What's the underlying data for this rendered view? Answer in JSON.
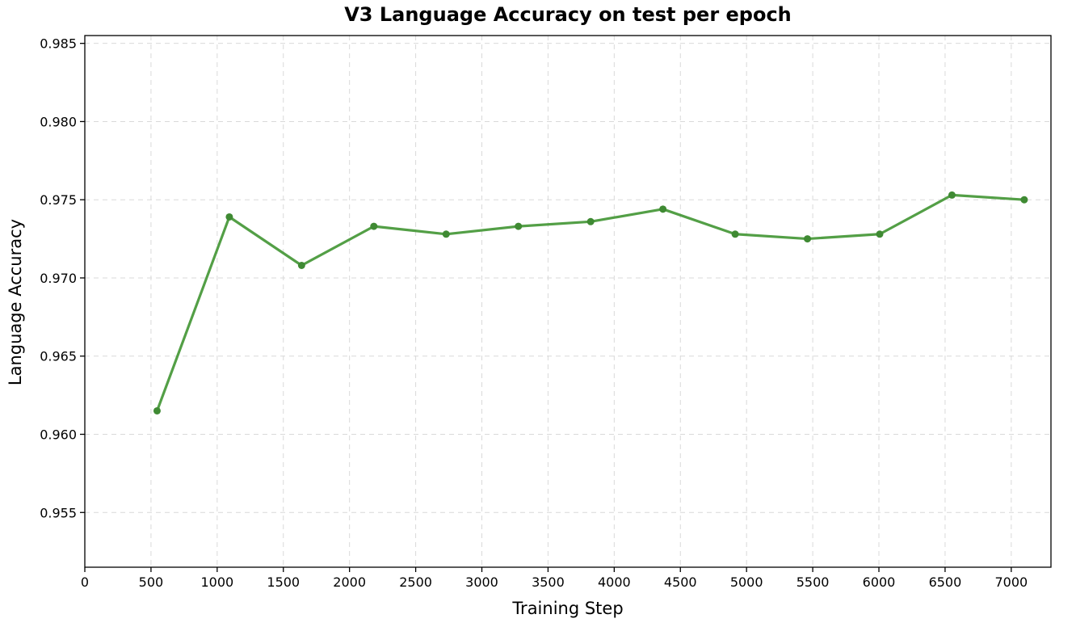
{
  "chart_data": {
    "type": "line",
    "title": "V3 Language Accuracy on test per epoch",
    "xlabel": "Training Step",
    "ylabel": "Language Accuracy",
    "xlim": [
      0,
      7300
    ],
    "ylim": [
      0.9515,
      0.9855
    ],
    "xticks": [
      0,
      500,
      1000,
      1500,
      2000,
      2500,
      3000,
      3500,
      4000,
      4500,
      5000,
      5500,
      6000,
      6500,
      7000
    ],
    "yticks": [
      0.955,
      0.96,
      0.965,
      0.97,
      0.975,
      0.98,
      0.985
    ],
    "ytick_labels": [
      "0.955",
      "0.960",
      "0.965",
      "0.970",
      "0.975",
      "0.980",
      "0.985"
    ],
    "grid": true,
    "legend": "none",
    "series": [
      {
        "color": "#4a9a3c",
        "x": [
          546,
          1092,
          1638,
          2184,
          2730,
          3276,
          3822,
          4368,
          4914,
          5460,
          6006,
          6552,
          7098
        ],
        "y": [
          0.9615,
          0.9739,
          0.9708,
          0.9733,
          0.9728,
          0.9733,
          0.9736,
          0.9744,
          0.9728,
          0.9725,
          0.9728,
          0.9753,
          0.975
        ]
      }
    ]
  }
}
